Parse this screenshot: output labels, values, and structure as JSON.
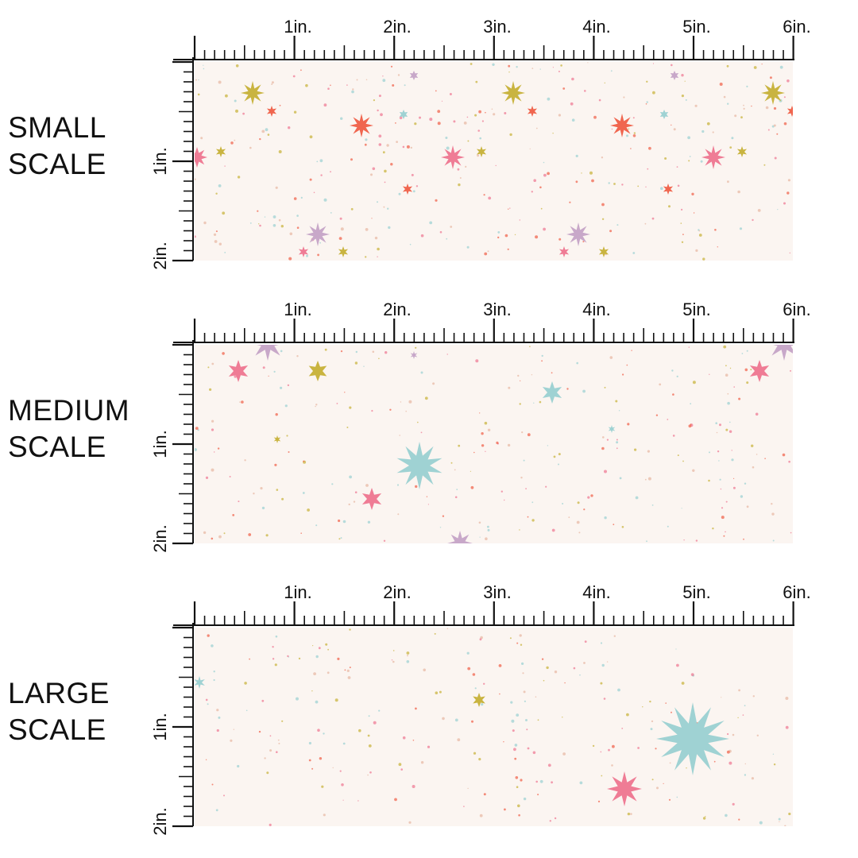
{
  "sections": [
    {
      "id": "small",
      "label": "SMALL\nSCALE",
      "x_ticks": [
        "1in.",
        "2in.",
        "3in.",
        "4in.",
        "5in.",
        "6in."
      ],
      "y_ticks": [
        "1in.",
        "2in."
      ]
    },
    {
      "id": "medium",
      "label": "MEDIUM\nSCALE",
      "x_ticks": [
        "1in.",
        "2in.",
        "3in.",
        "4in.",
        "5in.",
        "6in."
      ],
      "y_ticks": [
        "1in.",
        "2in."
      ]
    },
    {
      "id": "large",
      "label": "LARGE\nSCALE",
      "x_ticks": [
        "1in.",
        "2in.",
        "3in.",
        "4in.",
        "5in.",
        "6in."
      ],
      "y_ticks": [
        "1in.",
        "2in."
      ]
    }
  ],
  "colors": {
    "fabric_background": "#fbf5f1",
    "star_gold": "#c9b440",
    "star_coral": "#f0664f",
    "star_pink": "#ef7c95",
    "star_lilac": "#c8a8c9",
    "star_aqua": "#9fd2d3"
  },
  "pattern_icons": [
    "star-burst-icon",
    "speckle-dots"
  ]
}
